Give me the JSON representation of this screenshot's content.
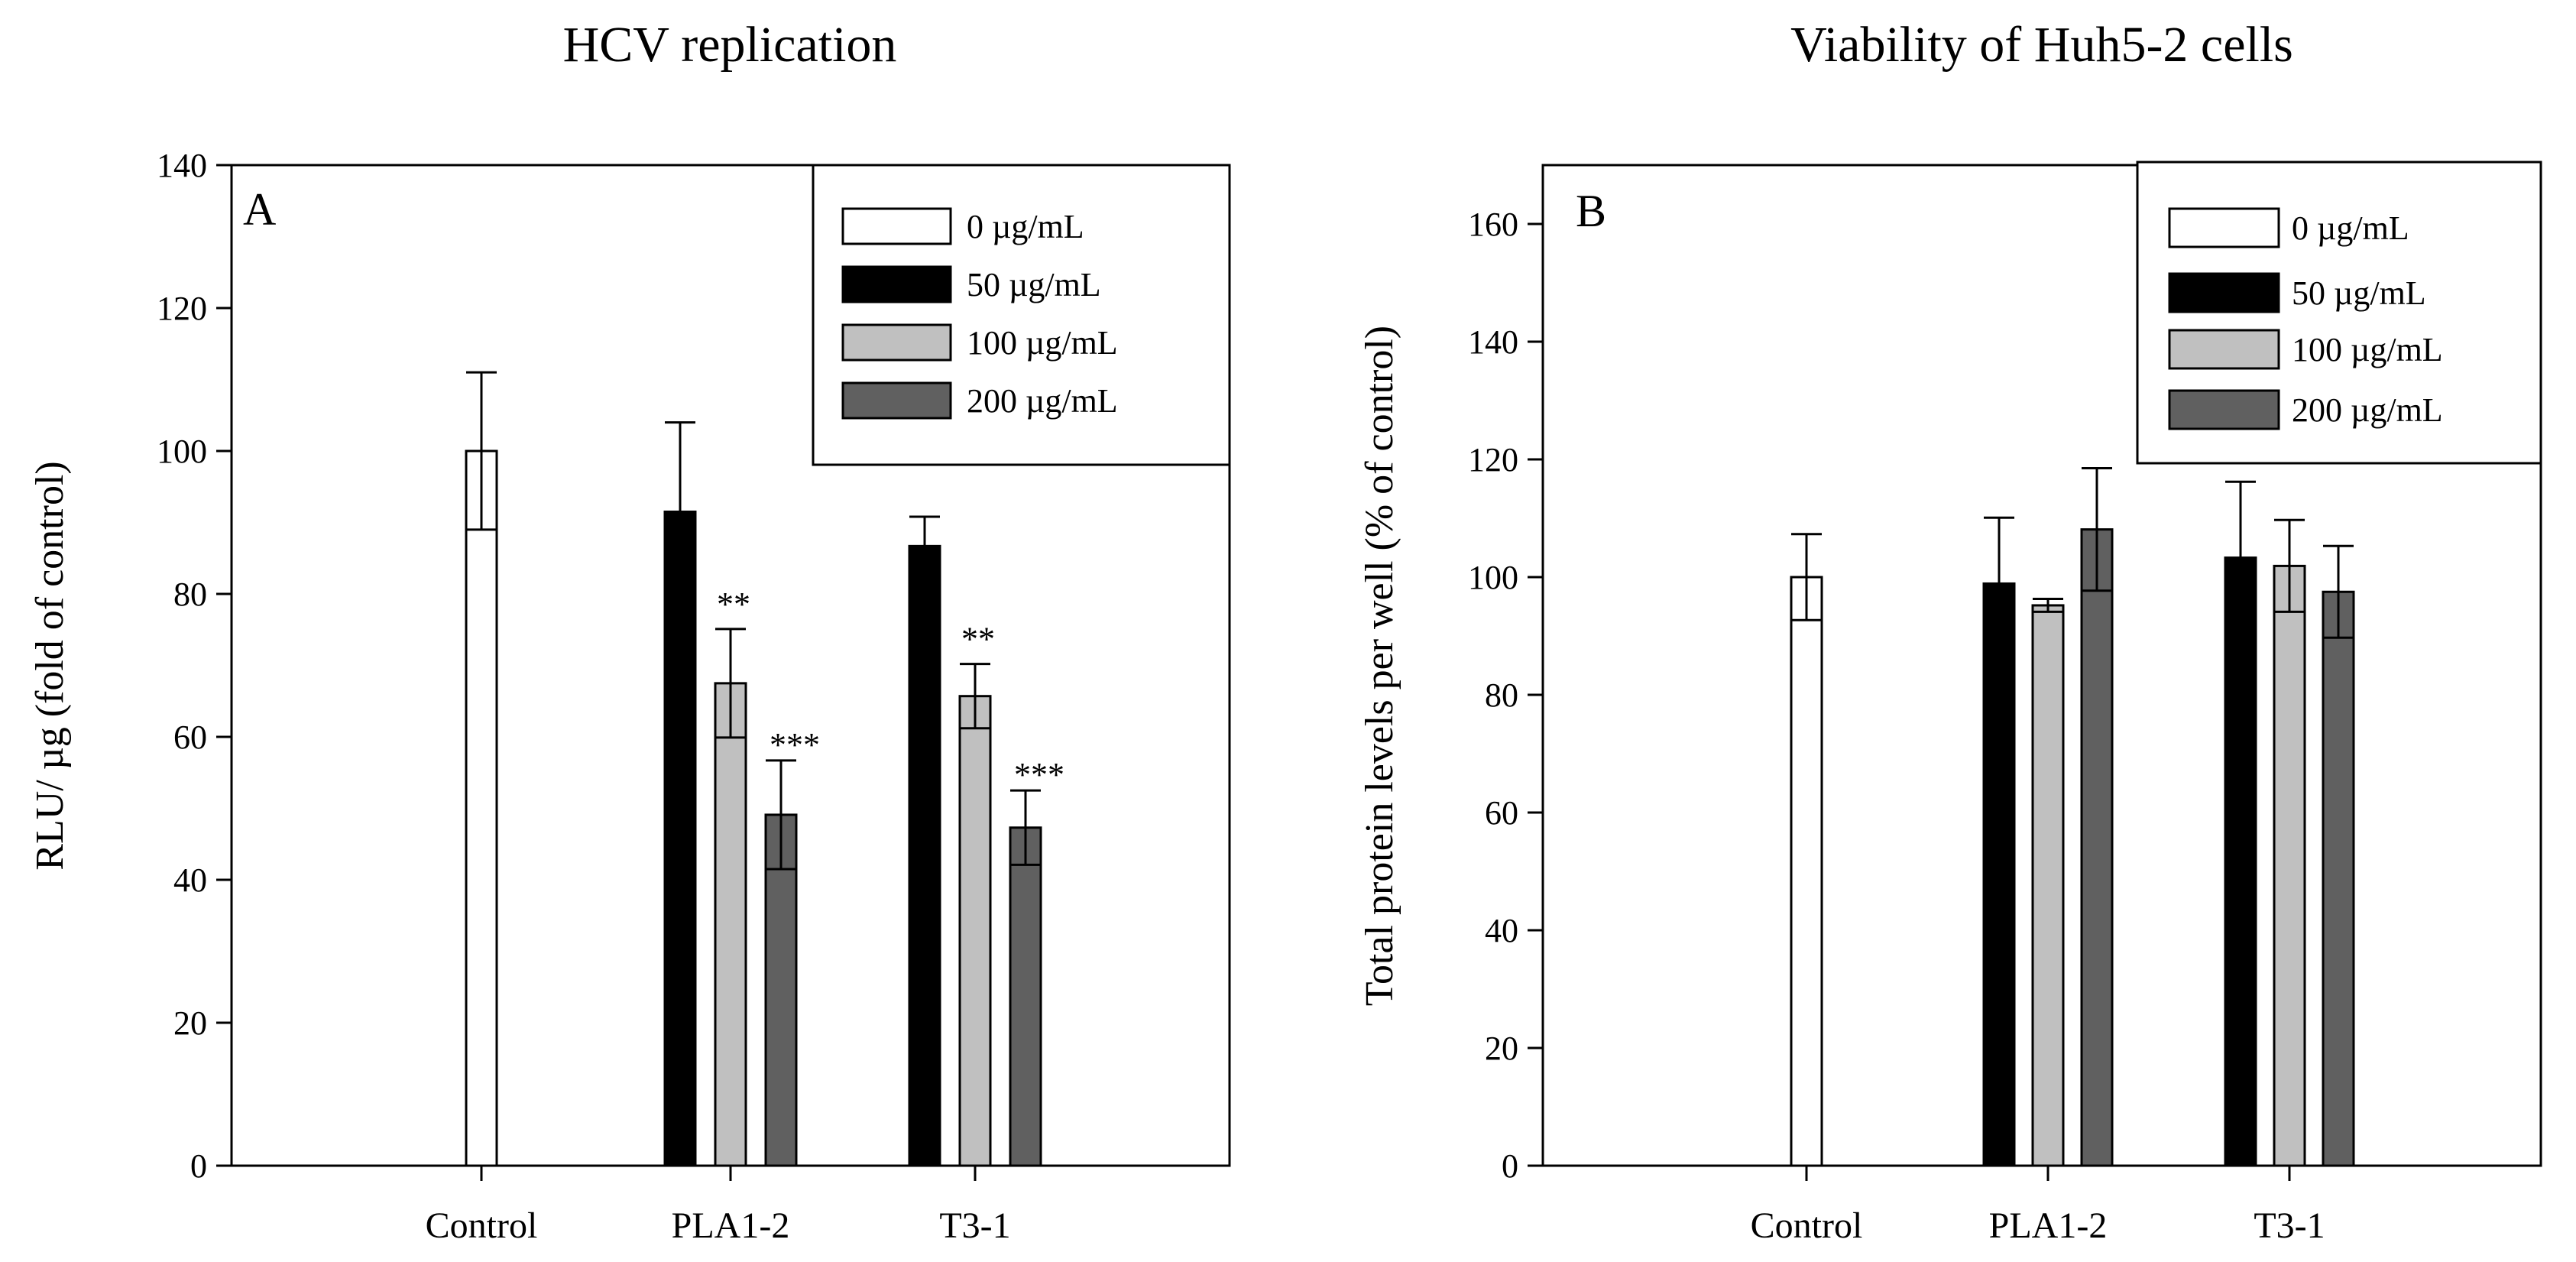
{
  "chart_data": [
    {
      "type": "bar",
      "panel": "A",
      "title": "HCV replication",
      "xlabel": "",
      "ylabel": "RLU/ µg (fold of control)",
      "ylim": [
        0,
        140
      ],
      "yticks": [
        "0",
        "20",
        "40",
        "60",
        "80",
        "100",
        "120",
        "140"
      ],
      "categories": [
        "Control",
        "PLA1-2",
        "T3-1"
      ],
      "legend_position": "top-right",
      "series": [
        {
          "name": "0 µg/mL",
          "color": "#ffffff",
          "values": [
            100,
            null,
            null
          ],
          "errors": [
            11,
            null,
            null
          ],
          "annotations": [
            "",
            "",
            ""
          ]
        },
        {
          "name": "50 µg/mL",
          "color": "#000000",
          "values": [
            null,
            91.5,
            86.7
          ],
          "errors": [
            null,
            12.5,
            4.1
          ],
          "annotations": [
            "",
            "",
            ""
          ]
        },
        {
          "name": "100 µg/mL",
          "color": "#c0c0c0",
          "values": [
            null,
            67.5,
            65.7
          ],
          "errors": [
            null,
            7.6,
            4.5
          ],
          "annotations": [
            "",
            "**",
            "**"
          ]
        },
        {
          "name": "200 µg/mL",
          "color": "#606060",
          "values": [
            null,
            49.1,
            47.3
          ],
          "errors": [
            null,
            7.6,
            5.2
          ],
          "annotations": [
            "",
            "***",
            "***"
          ]
        }
      ]
    },
    {
      "type": "bar",
      "panel": "B",
      "title": "Viability of Huh5-2 cells",
      "xlabel": "",
      "ylabel": "Total protein levels per well (% of control)",
      "ylim": [
        0,
        170
      ],
      "yticks": [
        "0",
        "20",
        "40",
        "60",
        "80",
        "100",
        "120",
        "140",
        "160"
      ],
      "categories": [
        "Control",
        "PLA1-2",
        "T3-1"
      ],
      "legend_position": "top-right",
      "series": [
        {
          "name": "0 µg/mL",
          "color": "#ffffff",
          "values": [
            100,
            null,
            null
          ],
          "errors": [
            7.3,
            null,
            null
          ],
          "annotations": [
            "",
            "",
            ""
          ]
        },
        {
          "name": "50 µg/mL",
          "color": "#000000",
          "values": [
            null,
            98.9,
            103.3
          ],
          "errors": [
            null,
            11.2,
            12.9
          ],
          "annotations": [
            "",
            "",
            ""
          ]
        },
        {
          "name": "100 µg/mL",
          "color": "#c0c0c0",
          "values": [
            null,
            95.2,
            101.9
          ],
          "errors": [
            null,
            1.1,
            7.8
          ],
          "annotations": [
            "",
            "",
            ""
          ]
        },
        {
          "name": "200 µg/mL",
          "color": "#606060",
          "values": [
            null,
            108.1,
            97.5
          ],
          "errors": [
            null,
            10.4,
            7.8
          ],
          "annotations": [
            "",
            "",
            ""
          ]
        }
      ]
    }
  ]
}
